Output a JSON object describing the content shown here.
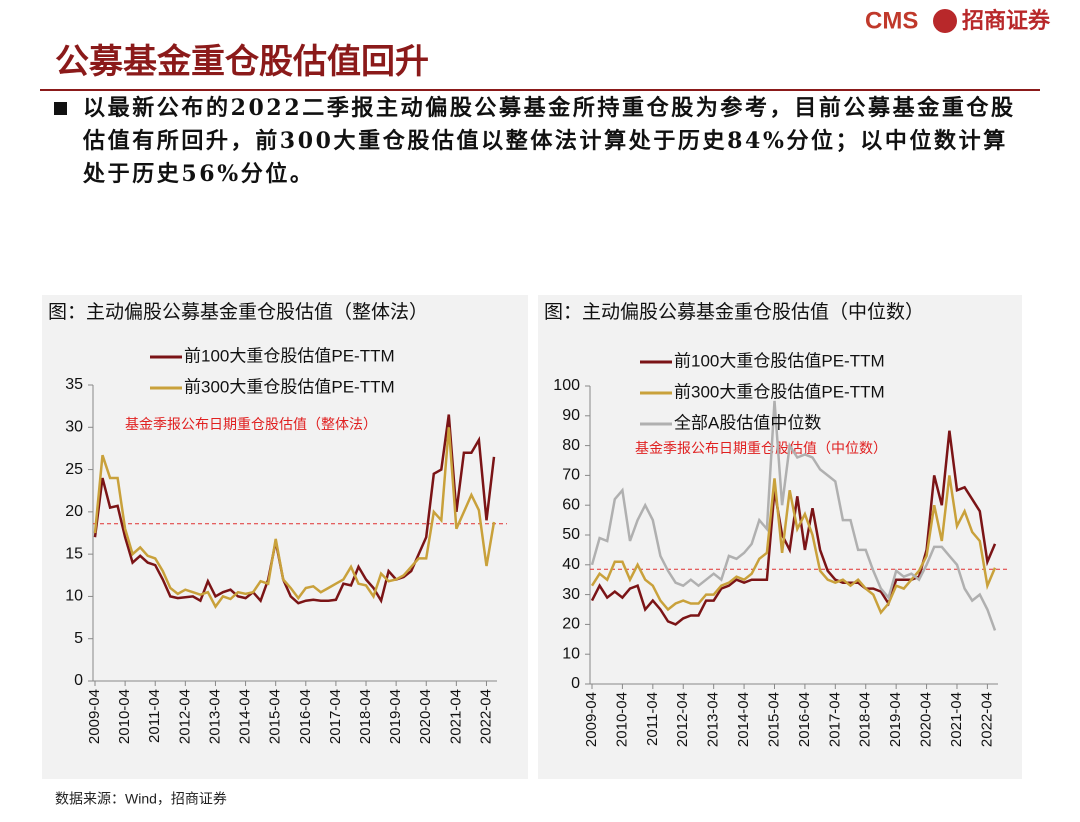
{
  "logo": {
    "brand": "CMS",
    "name": "招商证券"
  },
  "header": {
    "title": "公募基金重仓股估值回升"
  },
  "bullet": "以最新公布的2022二季报主动偏股公募基金所持重仓股为参考，目前公募基金重仓股估值有所回升，前300大重仓股估值以整体法计算处于历史84%分位；以中位数计算处于历史56%分位。",
  "source": "数据来源：Wind，招商证券",
  "chart_data": [
    {
      "type": "line",
      "title": "图：主动偏股公募基金重仓股估值（整体法）",
      "categories": [
        "2009-04",
        null,
        null,
        null,
        "2010-04",
        null,
        null,
        null,
        "2011-04",
        null,
        null,
        null,
        "2012-04",
        null,
        null,
        null,
        "2013-04",
        null,
        null,
        null,
        "2014-04",
        null,
        null,
        null,
        "2015-04",
        null,
        null,
        null,
        "2016-04",
        null,
        null,
        null,
        "2017-04",
        null,
        null,
        null,
        "2018-04",
        null,
        null,
        null,
        "2019-04",
        null,
        null,
        null,
        "2020-04",
        null,
        null,
        null,
        "2021-04",
        null,
        null,
        null,
        "2022-04",
        null
      ],
      "series": [
        {
          "name": "前100大重仓股估值PE-TTM",
          "color": "#7b1416",
          "values": [
            17,
            24,
            20.5,
            20.7,
            17,
            14,
            14.8,
            14,
            13.7,
            12,
            10,
            9.8,
            9.9,
            10,
            9.5,
            11.8,
            10,
            10.5,
            10.8,
            10,
            9.8,
            10.5,
            9.5,
            12,
            16.5,
            12,
            10,
            9.2,
            9.5,
            9.6,
            9.5,
            9.5,
            9.6,
            11.5,
            11.3,
            13.5,
            12,
            11,
            9.5,
            13,
            12,
            12.3,
            13,
            15,
            17,
            24.5,
            25,
            31.5,
            20,
            27,
            27,
            28.5,
            19,
            26.5
          ]
        },
        {
          "name": "前300大重仓股估值PE-TTM",
          "color": "#c9a13b",
          "values": [
            17.5,
            26.7,
            24,
            24,
            18,
            15,
            15.8,
            14.8,
            14.5,
            13,
            11,
            10.3,
            10.8,
            10.5,
            10.2,
            10.5,
            8.8,
            10,
            9.7,
            10.5,
            10.3,
            10.5,
            11.8,
            11.5,
            16.8,
            12,
            11,
            9.8,
            11,
            11.2,
            10.5,
            11,
            11.5,
            12,
            13.5,
            11.5,
            11.3,
            10,
            12.7,
            11.8,
            12,
            12.5,
            13.5,
            14.5,
            14.5,
            20,
            19,
            30,
            18,
            20,
            22,
            20.2,
            13.6,
            18.8
          ]
        }
      ],
      "ylim": [
        0,
        35
      ],
      "yticks": [
        0,
        5,
        10,
        15,
        20,
        25,
        30,
        35
      ],
      "reference_line": 18.6,
      "annotation": "基金季报公布日期重仓股估值（整体法）"
    },
    {
      "type": "line",
      "title": "图：主动偏股公募基金重仓股估值（中位数）",
      "categories": [
        "2009-04",
        null,
        null,
        null,
        "2010-04",
        null,
        null,
        null,
        "2011-04",
        null,
        null,
        null,
        "2012-04",
        null,
        null,
        null,
        "2013-04",
        null,
        null,
        null,
        "2014-04",
        null,
        null,
        null,
        "2015-04",
        null,
        null,
        null,
        "2016-04",
        null,
        null,
        null,
        "2017-04",
        null,
        null,
        null,
        "2018-04",
        null,
        null,
        null,
        "2019-04",
        null,
        null,
        null,
        "2020-04",
        null,
        null,
        null,
        "2021-04",
        null,
        null,
        null,
        "2022-04",
        null
      ],
      "series": [
        {
          "name": "前100大重仓股估值PE-TTM",
          "color": "#7b1416",
          "values": [
            28,
            33,
            29,
            31,
            29,
            32,
            33,
            25,
            28,
            25,
            21,
            20,
            22,
            23,
            23,
            28,
            28,
            32,
            33,
            35,
            34,
            35,
            35,
            35,
            65,
            50,
            45,
            63,
            45,
            59,
            45,
            38,
            35,
            34,
            34,
            34,
            32,
            32,
            31,
            27,
            35,
            35,
            35,
            36,
            45,
            70,
            60,
            85,
            65,
            66,
            62,
            58,
            41,
            47
          ]
        },
        {
          "name": "前300大重仓股估值PE-TTM",
          "color": "#c9a13b",
          "values": [
            33,
            37,
            35,
            41,
            41,
            35,
            40,
            35,
            33,
            28,
            25,
            27,
            28,
            27,
            27,
            30,
            30,
            33,
            34,
            36,
            35,
            37,
            42,
            44,
            69,
            44,
            65,
            52,
            57,
            50,
            38,
            35,
            34,
            35,
            33,
            35,
            32,
            30,
            24,
            27,
            33,
            32,
            35,
            38,
            43,
            60,
            48,
            70,
            53,
            58,
            51,
            48,
            33,
            39
          ]
        },
        {
          "name": "全部A股估值中位数",
          "color": "#b0b0b0",
          "values": [
            40,
            49,
            48,
            62,
            65,
            48,
            55,
            60,
            55,
            43,
            38,
            34,
            33,
            35,
            33,
            35,
            37,
            35,
            43,
            42,
            44,
            47,
            55,
            52,
            95,
            60,
            80,
            76,
            77,
            76,
            72,
            70,
            68,
            55,
            55,
            45,
            45,
            38,
            32,
            29,
            38,
            36,
            37,
            35,
            40,
            46,
            46,
            43,
            40,
            32,
            28,
            30,
            25,
            18
          ]
        }
      ],
      "ylim": [
        0,
        100
      ],
      "yticks": [
        0,
        10,
        20,
        30,
        40,
        50,
        60,
        70,
        80,
        90,
        100
      ],
      "reference_line": 38.5,
      "annotation": "基金季报公布日期重仓股估值（中位数）"
    }
  ]
}
